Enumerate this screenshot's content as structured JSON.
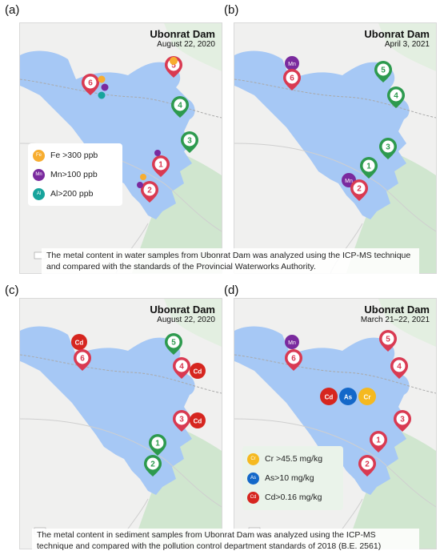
{
  "colors": {
    "water": "#a6c8f5",
    "land": "#f0f0ef",
    "forest": "#d0e6cf",
    "fe": "#f7ad30",
    "mn": "#7a2a9e",
    "al": "#17a49c",
    "cd": "#d6261f",
    "as": "#1468c9",
    "cr": "#f5b920",
    "site_red": "#d93a52",
    "site_green": "#2d9a4e"
  },
  "panels": [
    {
      "label": "(a)",
      "title": "Ubonrat Dam",
      "date": "August 22, 2020"
    },
    {
      "label": "(b)",
      "title": "Ubonrat Dam",
      "date": "April 3, 2021"
    },
    {
      "label": "(c)",
      "title": "Ubonrat Dam",
      "date": "August 22, 2020"
    },
    {
      "label": "(d)",
      "title": "Ubonrat Dam",
      "date": "March 21–22, 2021"
    }
  ],
  "captions": {
    "water": "The metal content in water samples from Ubonrat Dam was analyzed using the ICP-MS technique and compared with the standards of the Provincial Waterworks Authority.",
    "sediment": "The metal content in sediment samples from Ubonrat Dam was analyzed using the ICP-MS technique and compared with the pollution control department standards of 2018 (B.E. 2561)"
  },
  "legend_water": [
    {
      "abbr": "Fe",
      "text": "Fe >300 ppb",
      "color": "#f7ad30"
    },
    {
      "abbr": "Mn",
      "text": "Mn>100 ppb",
      "color": "#7a2a9e"
    },
    {
      "abbr": "Al",
      "text": "Al>200 ppb",
      "color": "#17a49c"
    }
  ],
  "legend_sediment": [
    {
      "abbr": "Cr",
      "text": "Cr >45.5 mg/kg",
      "color": "#f5b920"
    },
    {
      "abbr": "As",
      "text": "As>10 mg/kg",
      "color": "#1468c9"
    },
    {
      "abbr": "Cd",
      "text": "Cd>0.16 mg/kg",
      "color": "#d6261f"
    }
  ]
}
